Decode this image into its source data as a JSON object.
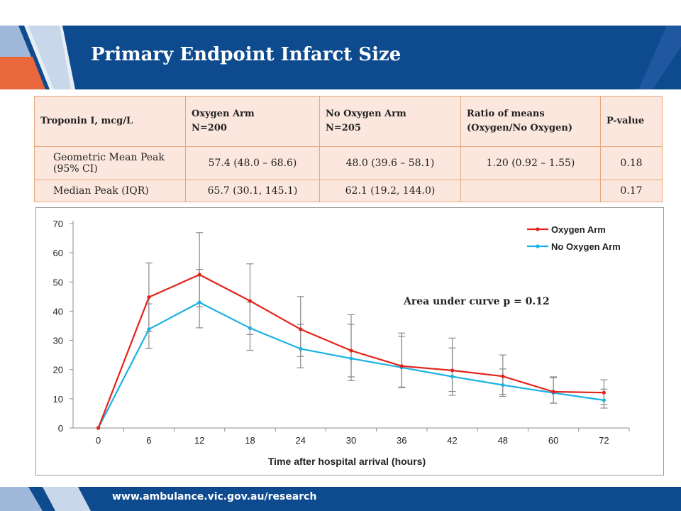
{
  "slide": {
    "title": "Primary Endpoint Infarct Size",
    "footer_url": "www.ambulance.vic.gov.au/research",
    "colors": {
      "header": "#0d4a8e",
      "accent_orange": "#e8673c",
      "table_fill": "#fbe7de"
    }
  },
  "table": {
    "headers": [
      [
        "Troponin I, mcg/L"
      ],
      [
        "Oxygen Arm",
        "N=200"
      ],
      [
        "No Oxygen Arm",
        "N=205"
      ],
      [
        "Ratio of means",
        "(Oxygen/No Oxygen)"
      ],
      [
        "P-value"
      ]
    ],
    "rows": [
      [
        "Geometric Mean Peak (95% CI)",
        "57.4 (48.0 – 68.6)",
        "48.0 (39.6 – 58.1)",
        "1.20 (0.92 – 1.55)",
        "0.18"
      ],
      [
        "Median Peak (IQR)",
        "65.7 (30.1, 145.1)",
        "62.1 (19.2, 144.0)",
        "",
        "0.17"
      ]
    ]
  },
  "chart_data": {
    "type": "line",
    "x": [
      0,
      6,
      12,
      18,
      24,
      30,
      36,
      42,
      48,
      60,
      72
    ],
    "xlabel": "Time after hospital arrival (hours)",
    "ylabel": "",
    "ylim": [
      0,
      70
    ],
    "yticks": [
      0,
      10,
      20,
      30,
      40,
      50,
      60,
      70
    ],
    "grid": false,
    "legend": "top-right",
    "annotation": "Area under curve p = 0.12",
    "series": [
      {
        "name": "Oxygen Arm",
        "color": "#e2231a",
        "values": [
          0,
          44.8,
          52.5,
          43.5,
          33.8,
          26.5,
          21.2,
          19.7,
          17.7,
          12.4,
          12.1
        ],
        "err_low": [
          0,
          33.0,
          41.5,
          32.0,
          24.5,
          17.5,
          14.0,
          12.5,
          11.5,
          8.5,
          8.0
        ],
        "err_high": [
          0,
          56.5,
          66.9,
          56.2,
          45.0,
          38.8,
          32.5,
          30.8,
          25.0,
          17.5,
          16.5
        ]
      },
      {
        "name": "No Oxygen Arm",
        "color": "#1ab2e3",
        "values": [
          0,
          33.8,
          43.0,
          34.2,
          27.1,
          23.8,
          20.7,
          17.6,
          14.7,
          12.0,
          9.5
        ],
        "err_low": [
          0,
          27.2,
          34.3,
          26.6,
          20.6,
          16.2,
          13.8,
          11.2,
          10.8,
          8.5,
          6.8
        ],
        "err_high": [
          0,
          42.5,
          54.3,
          43.2,
          35.5,
          35.5,
          31.4,
          27.4,
          20.2,
          17.2,
          13.3
        ]
      }
    ]
  }
}
